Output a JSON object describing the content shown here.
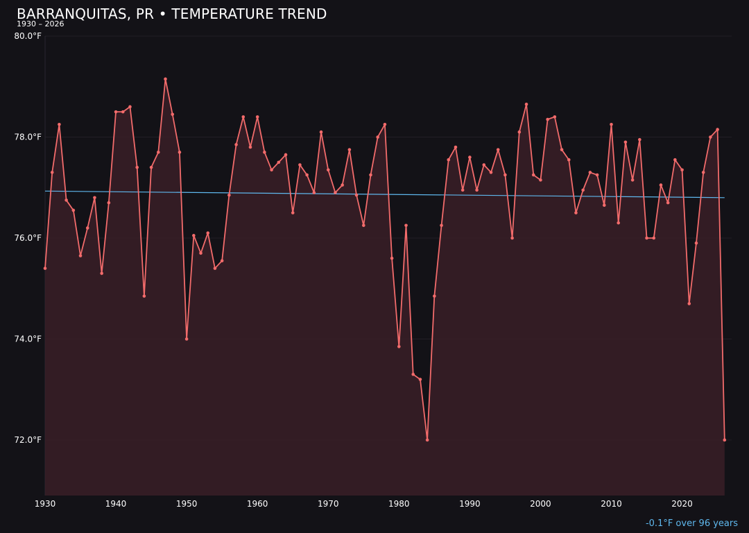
{
  "header": {
    "title": "BARRANQUITAS, PR • TEMPERATURE TREND",
    "subtitle": "1930 – 2026"
  },
  "footer": {
    "trend_text": "-0.1°F over 96 years"
  },
  "colors": {
    "background": "#131217",
    "line": "#f26b6b",
    "fill": "#3a1f27",
    "trend": "#5fb8ee",
    "grid": "#221f26"
  },
  "chart_data": {
    "type": "line",
    "title": "BARRANQUITAS, PR • TEMPERATURE TREND",
    "subtitle": "1930 – 2026",
    "unit": "°F",
    "xlim": [
      1930,
      2027
    ],
    "ylim": [
      70.9,
      80.0
    ],
    "y_ticks": [
      72.0,
      74.0,
      76.0,
      78.0,
      80.0
    ],
    "y_tick_labels": [
      "72.0°F",
      "74.0°F",
      "76.0°F",
      "78.0°F",
      "80.0°F"
    ],
    "x_ticks": [
      1930,
      1940,
      1950,
      1960,
      1970,
      1980,
      1990,
      2000,
      2010,
      2020
    ],
    "x_tick_labels": [
      "1930",
      "1940",
      "1950",
      "1960",
      "1970",
      "1980",
      "1990",
      "2000",
      "2010",
      "2020"
    ],
    "grid": true,
    "area_fill": true,
    "series": [
      {
        "x": [
          1930,
          1931,
          1932,
          1933,
          1934,
          1935,
          1936,
          1937,
          1938,
          1939,
          1940,
          1941,
          1942,
          1943,
          1944,
          1945,
          1946,
          1947,
          1948,
          1949,
          1950,
          1951,
          1952,
          1953,
          1954,
          1955,
          1956,
          1957,
          1958,
          1959,
          1960,
          1961,
          1962,
          1963,
          1964,
          1965,
          1966,
          1967,
          1968,
          1969,
          1970,
          1971,
          1972,
          1973,
          1974,
          1975,
          1976,
          1977,
          1978,
          1979,
          1980,
          1981,
          1982,
          1983,
          1984,
          1985,
          1986,
          1987,
          1988,
          1989,
          1990,
          1991,
          1992,
          1993,
          1994,
          1995,
          1996,
          1997,
          1998,
          1999,
          2000,
          2001,
          2002,
          2003,
          2004,
          2005,
          2006,
          2007,
          2008,
          2009,
          2010,
          2011,
          2012,
          2013,
          2014,
          2015,
          2016,
          2017,
          2018,
          2019,
          2020,
          2021,
          2022,
          2023,
          2024,
          2025,
          2026
        ],
        "values": [
          75.4,
          77.3,
          78.25,
          76.75,
          76.55,
          75.65,
          76.2,
          76.8,
          75.3,
          76.7,
          78.5,
          78.5,
          78.6,
          77.4,
          74.85,
          77.4,
          77.7,
          79.15,
          78.45,
          77.7,
          74.0,
          76.05,
          75.7,
          76.1,
          75.4,
          75.55,
          76.85,
          77.85,
          78.4,
          77.8,
          78.4,
          77.7,
          77.35,
          77.5,
          77.65,
          76.5,
          77.45,
          77.25,
          76.9,
          78.1,
          77.35,
          76.9,
          77.05,
          77.75,
          76.85,
          76.25,
          77.25,
          78.0,
          78.25,
          75.6,
          73.85,
          76.25,
          73.3,
          73.2,
          72.0,
          74.85,
          76.25,
          77.55,
          77.8,
          76.95,
          77.6,
          76.95,
          77.45,
          77.3,
          77.75,
          77.25,
          76.0,
          78.1,
          78.65,
          77.25,
          77.15,
          78.35,
          78.4,
          77.75,
          77.55,
          76.5,
          76.95,
          77.3,
          77.25,
          76.65,
          78.25,
          76.3,
          77.9,
          77.15,
          77.95,
          76.0,
          76.0,
          77.05,
          76.7,
          77.55,
          77.35,
          74.7,
          75.9,
          77.3,
          78.0,
          78.15,
          72.0
        ]
      }
    ],
    "trendline": {
      "x": [
        1930,
        2026
      ],
      "y": [
        76.93,
        76.8
      ]
    }
  }
}
